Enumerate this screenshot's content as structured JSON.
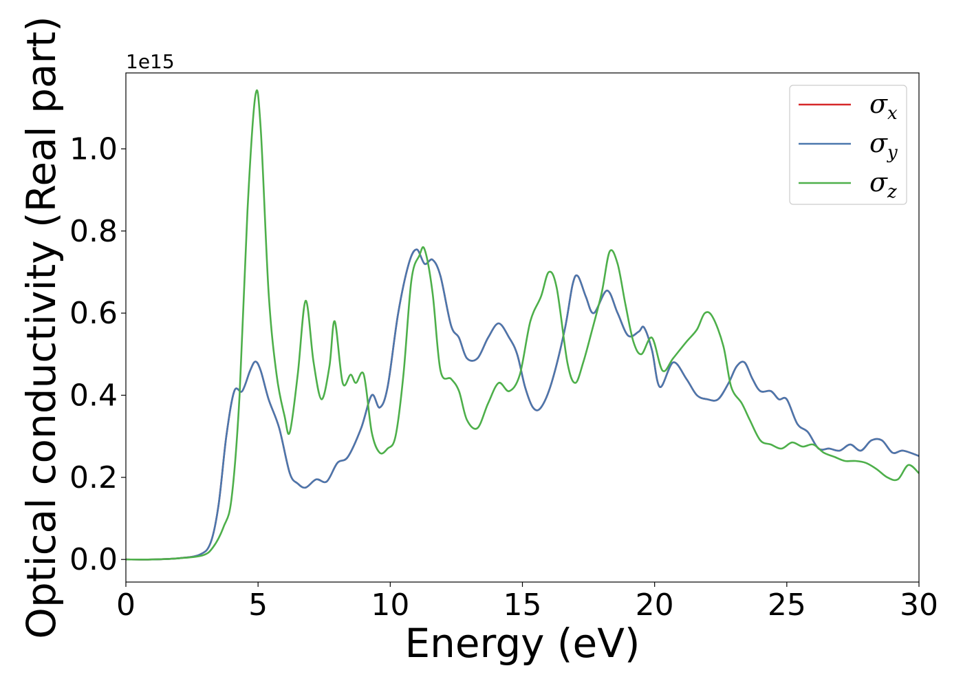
{
  "chart_data": {
    "type": "line",
    "xlabel": "Energy (eV)",
    "ylabel": "Optical conductivity (Real part)",
    "y_offset_label": "1e15",
    "xlim": [
      0,
      30
    ],
    "ylim": [
      -0.055,
      1.185
    ],
    "x_ticks": [
      0,
      5,
      10,
      15,
      20,
      25,
      30
    ],
    "x_tick_labels": [
      "0",
      "5",
      "10",
      "15",
      "20",
      "25",
      "30"
    ],
    "y_ticks": [
      0.0,
      0.2,
      0.4,
      0.6,
      0.8,
      1.0
    ],
    "y_tick_labels": [
      "0.0",
      "0.2",
      "0.4",
      "0.6",
      "0.8",
      "1.0"
    ],
    "grid": false,
    "legend_position": "top-right",
    "series": [
      {
        "name": "σ",
        "name_sub": "x",
        "color": "#d62728",
        "points": [
          [
            0,
            0
          ],
          [
            1,
            0
          ],
          [
            2,
            0.003
          ],
          [
            2.8,
            0.012
          ],
          [
            3.2,
            0.04
          ],
          [
            3.5,
            0.13
          ],
          [
            3.8,
            0.3
          ],
          [
            4.1,
            0.41
          ],
          [
            4.4,
            0.41
          ],
          [
            4.7,
            0.46
          ],
          [
            4.9,
            0.482
          ],
          [
            5.1,
            0.46
          ],
          [
            5.4,
            0.39
          ],
          [
            5.8,
            0.32
          ],
          [
            6.2,
            0.21
          ],
          [
            6.5,
            0.185
          ],
          [
            6.8,
            0.175
          ],
          [
            7.2,
            0.195
          ],
          [
            7.6,
            0.19
          ],
          [
            8.0,
            0.235
          ],
          [
            8.4,
            0.25
          ],
          [
            8.9,
            0.32
          ],
          [
            9.3,
            0.4
          ],
          [
            9.6,
            0.37
          ],
          [
            9.9,
            0.42
          ],
          [
            10.3,
            0.6
          ],
          [
            10.7,
            0.72
          ],
          [
            11.0,
            0.755
          ],
          [
            11.3,
            0.72
          ],
          [
            11.6,
            0.73
          ],
          [
            11.9,
            0.69
          ],
          [
            12.3,
            0.57
          ],
          [
            12.6,
            0.54
          ],
          [
            12.9,
            0.49
          ],
          [
            13.3,
            0.49
          ],
          [
            13.7,
            0.54
          ],
          [
            14.1,
            0.575
          ],
          [
            14.5,
            0.54
          ],
          [
            14.8,
            0.5
          ],
          [
            15.1,
            0.42
          ],
          [
            15.4,
            0.37
          ],
          [
            15.7,
            0.37
          ],
          [
            16.1,
            0.43
          ],
          [
            16.6,
            0.56
          ],
          [
            16.9,
            0.67
          ],
          [
            17.1,
            0.69
          ],
          [
            17.4,
            0.64
          ],
          [
            17.7,
            0.6
          ],
          [
            18.2,
            0.655
          ],
          [
            18.6,
            0.6
          ],
          [
            19.0,
            0.545
          ],
          [
            19.4,
            0.555
          ],
          [
            19.6,
            0.565
          ],
          [
            19.9,
            0.51
          ],
          [
            20.2,
            0.42
          ],
          [
            20.7,
            0.48
          ],
          [
            21.2,
            0.44
          ],
          [
            21.6,
            0.4
          ],
          [
            22.0,
            0.39
          ],
          [
            22.4,
            0.39
          ],
          [
            22.8,
            0.43
          ],
          [
            23.1,
            0.47
          ],
          [
            23.4,
            0.48
          ],
          [
            23.7,
            0.44
          ],
          [
            24.0,
            0.41
          ],
          [
            24.4,
            0.41
          ],
          [
            24.7,
            0.39
          ],
          [
            25.0,
            0.39
          ],
          [
            25.4,
            0.33
          ],
          [
            25.8,
            0.31
          ],
          [
            26.2,
            0.27
          ],
          [
            26.6,
            0.27
          ],
          [
            27.0,
            0.265
          ],
          [
            27.4,
            0.28
          ],
          [
            27.8,
            0.265
          ],
          [
            28.2,
            0.29
          ],
          [
            28.6,
            0.29
          ],
          [
            29.0,
            0.26
          ],
          [
            29.4,
            0.265
          ],
          [
            30.0,
            0.252
          ]
        ]
      },
      {
        "name": "σ",
        "name_sub": "y",
        "color": "#4a77ad",
        "points": [
          [
            0,
            0
          ],
          [
            1,
            0
          ],
          [
            2,
            0.003
          ],
          [
            2.8,
            0.012
          ],
          [
            3.2,
            0.04
          ],
          [
            3.5,
            0.13
          ],
          [
            3.8,
            0.3
          ],
          [
            4.1,
            0.41
          ],
          [
            4.4,
            0.41
          ],
          [
            4.7,
            0.46
          ],
          [
            4.9,
            0.482
          ],
          [
            5.1,
            0.46
          ],
          [
            5.4,
            0.39
          ],
          [
            5.8,
            0.32
          ],
          [
            6.2,
            0.21
          ],
          [
            6.5,
            0.185
          ],
          [
            6.8,
            0.175
          ],
          [
            7.2,
            0.195
          ],
          [
            7.6,
            0.19
          ],
          [
            8.0,
            0.235
          ],
          [
            8.4,
            0.25
          ],
          [
            8.9,
            0.32
          ],
          [
            9.3,
            0.4
          ],
          [
            9.6,
            0.37
          ],
          [
            9.9,
            0.42
          ],
          [
            10.3,
            0.6
          ],
          [
            10.7,
            0.72
          ],
          [
            11.0,
            0.755
          ],
          [
            11.3,
            0.72
          ],
          [
            11.6,
            0.73
          ],
          [
            11.9,
            0.69
          ],
          [
            12.3,
            0.57
          ],
          [
            12.6,
            0.54
          ],
          [
            12.9,
            0.49
          ],
          [
            13.3,
            0.49
          ],
          [
            13.7,
            0.54
          ],
          [
            14.1,
            0.575
          ],
          [
            14.5,
            0.54
          ],
          [
            14.8,
            0.5
          ],
          [
            15.1,
            0.42
          ],
          [
            15.4,
            0.37
          ],
          [
            15.7,
            0.37
          ],
          [
            16.1,
            0.43
          ],
          [
            16.6,
            0.56
          ],
          [
            16.9,
            0.67
          ],
          [
            17.1,
            0.69
          ],
          [
            17.4,
            0.64
          ],
          [
            17.7,
            0.6
          ],
          [
            18.2,
            0.655
          ],
          [
            18.6,
            0.6
          ],
          [
            19.0,
            0.545
          ],
          [
            19.4,
            0.555
          ],
          [
            19.6,
            0.565
          ],
          [
            19.9,
            0.51
          ],
          [
            20.2,
            0.42
          ],
          [
            20.7,
            0.48
          ],
          [
            21.2,
            0.44
          ],
          [
            21.6,
            0.4
          ],
          [
            22.0,
            0.39
          ],
          [
            22.4,
            0.39
          ],
          [
            22.8,
            0.43
          ],
          [
            23.1,
            0.47
          ],
          [
            23.4,
            0.48
          ],
          [
            23.7,
            0.44
          ],
          [
            24.0,
            0.41
          ],
          [
            24.4,
            0.41
          ],
          [
            24.7,
            0.39
          ],
          [
            25.0,
            0.39
          ],
          [
            25.4,
            0.33
          ],
          [
            25.8,
            0.31
          ],
          [
            26.2,
            0.27
          ],
          [
            26.6,
            0.27
          ],
          [
            27.0,
            0.265
          ],
          [
            27.4,
            0.28
          ],
          [
            27.8,
            0.265
          ],
          [
            28.2,
            0.29
          ],
          [
            28.6,
            0.29
          ],
          [
            29.0,
            0.26
          ],
          [
            29.4,
            0.265
          ],
          [
            30.0,
            0.252
          ]
        ]
      },
      {
        "name": "σ",
        "name_sub": "z",
        "color": "#4daf4a",
        "points": [
          [
            0,
            0
          ],
          [
            1,
            0
          ],
          [
            2,
            0.003
          ],
          [
            2.9,
            0.01
          ],
          [
            3.3,
            0.03
          ],
          [
            3.7,
            0.08
          ],
          [
            4.0,
            0.15
          ],
          [
            4.3,
            0.4
          ],
          [
            4.6,
            0.85
          ],
          [
            4.9,
            1.13
          ],
          [
            5.1,
            1.05
          ],
          [
            5.4,
            0.65
          ],
          [
            5.7,
            0.45
          ],
          [
            6.0,
            0.35
          ],
          [
            6.2,
            0.31
          ],
          [
            6.5,
            0.45
          ],
          [
            6.8,
            0.63
          ],
          [
            7.1,
            0.48
          ],
          [
            7.4,
            0.39
          ],
          [
            7.7,
            0.47
          ],
          [
            7.9,
            0.58
          ],
          [
            8.2,
            0.43
          ],
          [
            8.5,
            0.45
          ],
          [
            8.7,
            0.43
          ],
          [
            9.0,
            0.45
          ],
          [
            9.3,
            0.31
          ],
          [
            9.6,
            0.26
          ],
          [
            9.9,
            0.27
          ],
          [
            10.2,
            0.3
          ],
          [
            10.5,
            0.45
          ],
          [
            10.8,
            0.68
          ],
          [
            11.1,
            0.74
          ],
          [
            11.3,
            0.755
          ],
          [
            11.6,
            0.65
          ],
          [
            11.9,
            0.46
          ],
          [
            12.3,
            0.44
          ],
          [
            12.6,
            0.41
          ],
          [
            12.9,
            0.34
          ],
          [
            13.3,
            0.32
          ],
          [
            13.7,
            0.38
          ],
          [
            14.1,
            0.43
          ],
          [
            14.5,
            0.41
          ],
          [
            14.9,
            0.45
          ],
          [
            15.3,
            0.58
          ],
          [
            15.7,
            0.64
          ],
          [
            16.0,
            0.7
          ],
          [
            16.3,
            0.66
          ],
          [
            16.7,
            0.48
          ],
          [
            17.0,
            0.43
          ],
          [
            17.3,
            0.48
          ],
          [
            17.6,
            0.55
          ],
          [
            18.0,
            0.65
          ],
          [
            18.3,
            0.75
          ],
          [
            18.6,
            0.72
          ],
          [
            18.9,
            0.62
          ],
          [
            19.2,
            0.53
          ],
          [
            19.5,
            0.5
          ],
          [
            19.9,
            0.54
          ],
          [
            20.3,
            0.46
          ],
          [
            20.7,
            0.49
          ],
          [
            21.2,
            0.53
          ],
          [
            21.6,
            0.56
          ],
          [
            21.9,
            0.6
          ],
          [
            22.2,
            0.59
          ],
          [
            22.6,
            0.52
          ],
          [
            22.9,
            0.42
          ],
          [
            23.3,
            0.38
          ],
          [
            23.6,
            0.34
          ],
          [
            24.0,
            0.29
          ],
          [
            24.4,
            0.28
          ],
          [
            24.8,
            0.27
          ],
          [
            25.2,
            0.285
          ],
          [
            25.6,
            0.275
          ],
          [
            26.0,
            0.28
          ],
          [
            26.4,
            0.26
          ],
          [
            26.8,
            0.25
          ],
          [
            27.2,
            0.24
          ],
          [
            27.6,
            0.24
          ],
          [
            28.0,
            0.235
          ],
          [
            28.4,
            0.22
          ],
          [
            28.8,
            0.2
          ],
          [
            29.2,
            0.195
          ],
          [
            29.6,
            0.23
          ],
          [
            30.0,
            0.21
          ]
        ]
      }
    ]
  }
}
